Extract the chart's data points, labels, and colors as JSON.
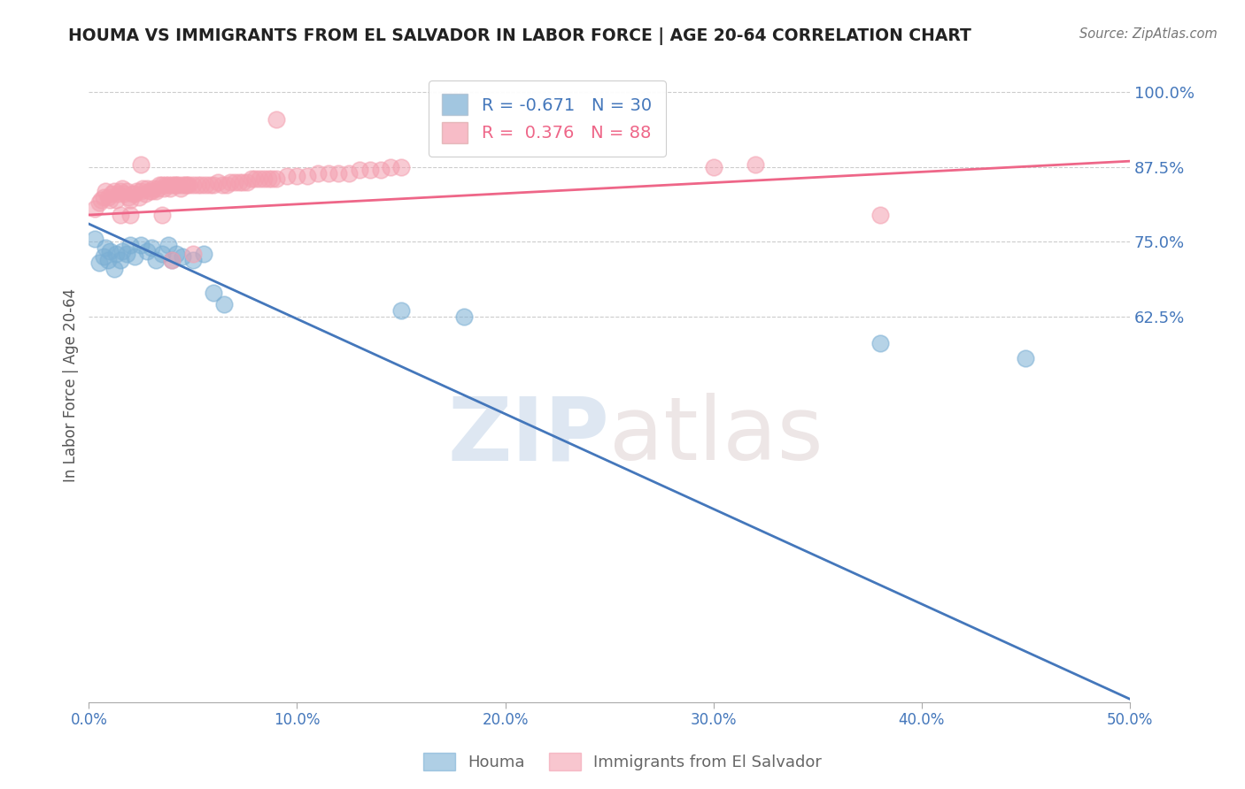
{
  "title": "HOUMA VS IMMIGRANTS FROM EL SALVADOR IN LABOR FORCE | AGE 20-64 CORRELATION CHART",
  "source": "Source: ZipAtlas.com",
  "ylabel": "In Labor Force | Age 20-64",
  "xlim": [
    0.0,
    0.5
  ],
  "ylim": [
    -0.02,
    1.04
  ],
  "yticks": [
    0.625,
    0.75,
    0.875,
    1.0
  ],
  "ytick_labels": [
    "62.5%",
    "75.0%",
    "87.5%",
    "100.0%"
  ],
  "xticks": [
    0.0,
    0.1,
    0.2,
    0.3,
    0.4,
    0.5
  ],
  "xtick_labels": [
    "0.0%",
    "10.0%",
    "20.0%",
    "30.0%",
    "40.0%",
    "50.0%"
  ],
  "blue_r": -0.671,
  "blue_n": 30,
  "pink_r": 0.376,
  "pink_n": 88,
  "blue_color": "#7BAFD4",
  "pink_color": "#F4A0B0",
  "blue_line_color": "#4477BB",
  "pink_line_color": "#EE6688",
  "axis_color": "#4477BB",
  "grid_color": "#CCCCCC",
  "watermark_zip": "ZIP",
  "watermark_atlas": "atlas",
  "blue_line_x0": 0.0,
  "blue_line_y0": 0.78,
  "blue_line_x1": 0.5,
  "blue_line_y1": -0.015,
  "pink_line_x0": 0.0,
  "pink_line_y0": 0.795,
  "pink_line_x1": 0.5,
  "pink_line_y1": 0.885,
  "blue_scatter_x": [
    0.003,
    0.005,
    0.007,
    0.008,
    0.009,
    0.01,
    0.012,
    0.013,
    0.015,
    0.016,
    0.018,
    0.02,
    0.022,
    0.025,
    0.028,
    0.03,
    0.032,
    0.035,
    0.038,
    0.04,
    0.042,
    0.045,
    0.05,
    0.055,
    0.06,
    0.065,
    0.15,
    0.18,
    0.38,
    0.45
  ],
  "blue_scatter_y": [
    0.755,
    0.715,
    0.725,
    0.74,
    0.72,
    0.735,
    0.705,
    0.73,
    0.72,
    0.735,
    0.73,
    0.745,
    0.725,
    0.745,
    0.735,
    0.74,
    0.72,
    0.73,
    0.745,
    0.72,
    0.73,
    0.725,
    0.72,
    0.73,
    0.665,
    0.645,
    0.635,
    0.625,
    0.58,
    0.555
  ],
  "pink_scatter_x": [
    0.003,
    0.005,
    0.006,
    0.007,
    0.008,
    0.009,
    0.01,
    0.011,
    0.012,
    0.013,
    0.014,
    0.015,
    0.016,
    0.017,
    0.018,
    0.019,
    0.02,
    0.021,
    0.022,
    0.023,
    0.024,
    0.025,
    0.026,
    0.027,
    0.028,
    0.029,
    0.03,
    0.031,
    0.032,
    0.033,
    0.034,
    0.035,
    0.036,
    0.037,
    0.038,
    0.039,
    0.04,
    0.041,
    0.042,
    0.043,
    0.044,
    0.045,
    0.046,
    0.047,
    0.048,
    0.05,
    0.052,
    0.054,
    0.056,
    0.058,
    0.06,
    0.062,
    0.064,
    0.066,
    0.068,
    0.07,
    0.072,
    0.074,
    0.076,
    0.078,
    0.08,
    0.082,
    0.084,
    0.086,
    0.088,
    0.09,
    0.095,
    0.1,
    0.105,
    0.11,
    0.115,
    0.12,
    0.125,
    0.13,
    0.135,
    0.14,
    0.145,
    0.15,
    0.3,
    0.32,
    0.015,
    0.02,
    0.025,
    0.035,
    0.04,
    0.05,
    0.09,
    0.38
  ],
  "pink_scatter_y": [
    0.805,
    0.815,
    0.82,
    0.825,
    0.835,
    0.825,
    0.82,
    0.83,
    0.835,
    0.82,
    0.83,
    0.835,
    0.84,
    0.83,
    0.835,
    0.825,
    0.82,
    0.83,
    0.83,
    0.835,
    0.825,
    0.835,
    0.84,
    0.83,
    0.84,
    0.835,
    0.835,
    0.84,
    0.835,
    0.84,
    0.845,
    0.845,
    0.84,
    0.845,
    0.845,
    0.84,
    0.845,
    0.845,
    0.845,
    0.845,
    0.84,
    0.845,
    0.845,
    0.845,
    0.845,
    0.845,
    0.845,
    0.845,
    0.845,
    0.845,
    0.845,
    0.85,
    0.845,
    0.845,
    0.85,
    0.85,
    0.85,
    0.85,
    0.85,
    0.855,
    0.855,
    0.855,
    0.855,
    0.855,
    0.855,
    0.855,
    0.86,
    0.86,
    0.86,
    0.865,
    0.865,
    0.865,
    0.865,
    0.87,
    0.87,
    0.87,
    0.875,
    0.875,
    0.875,
    0.88,
    0.795,
    0.795,
    0.88,
    0.795,
    0.72,
    0.73,
    0.955,
    0.795
  ]
}
